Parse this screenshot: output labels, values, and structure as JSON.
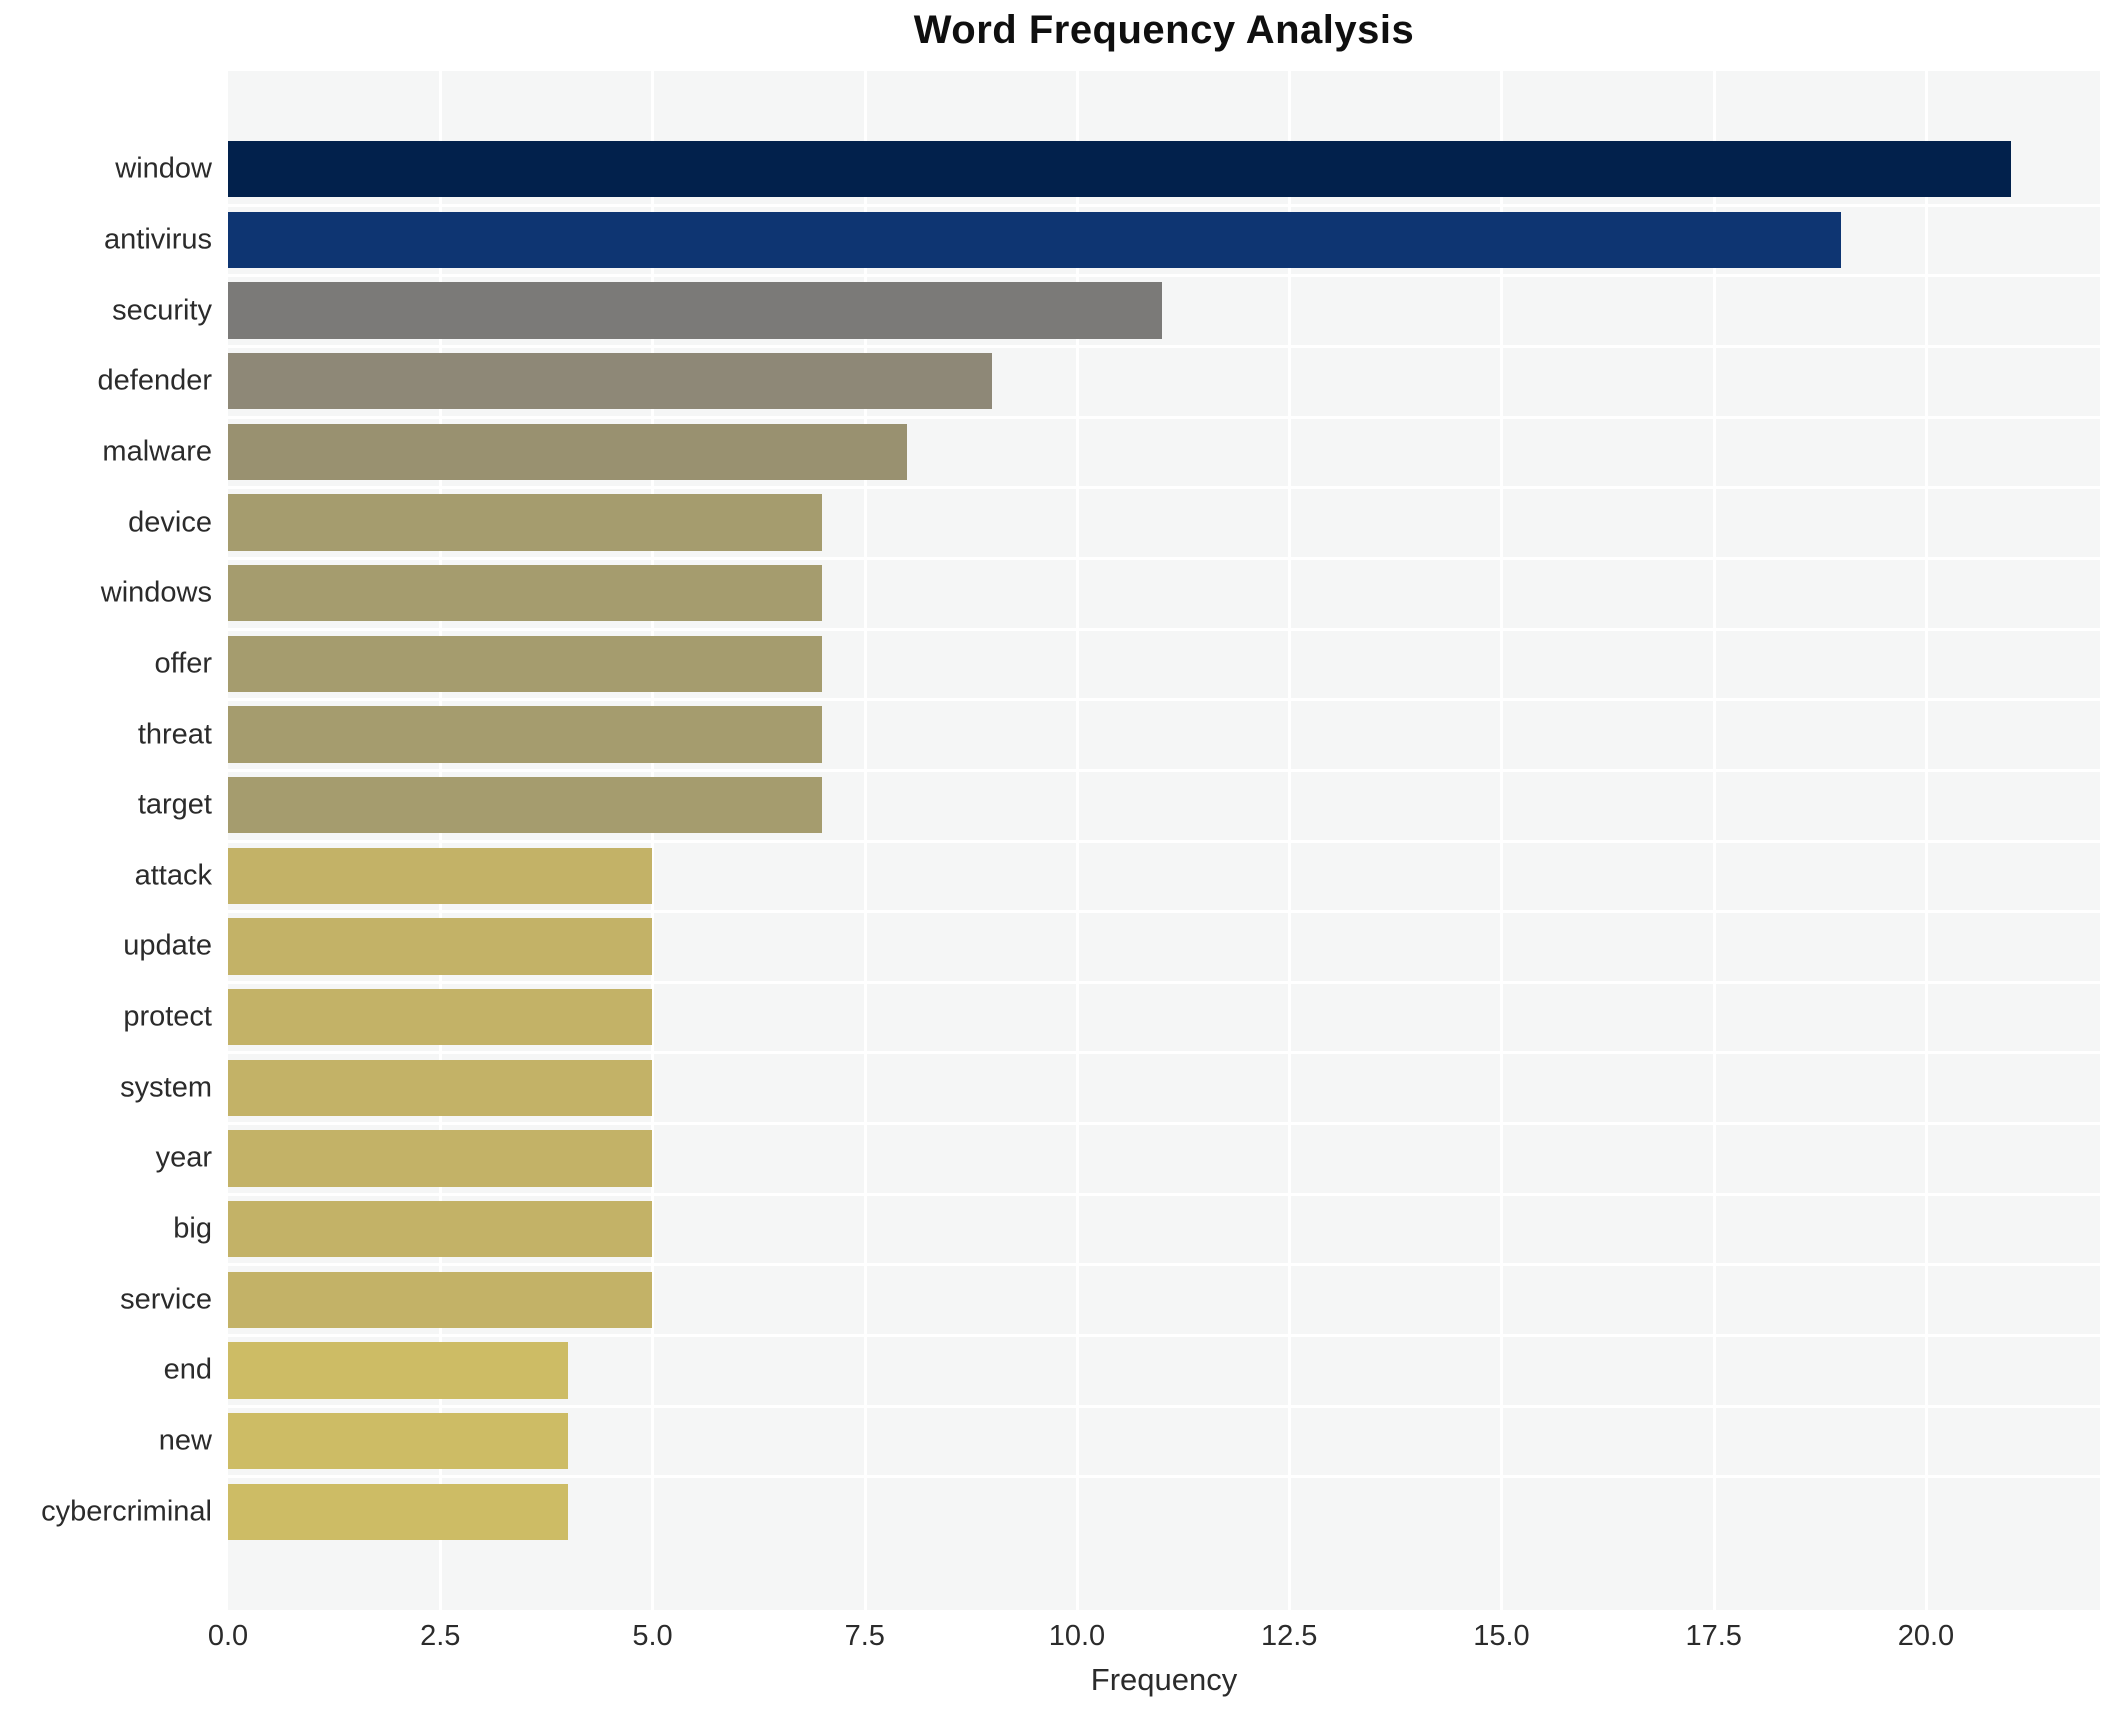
{
  "figure": {
    "title": "Word Frequency Analysis",
    "background": "#ffffff"
  },
  "chart_data": {
    "type": "bar",
    "orientation": "horizontal",
    "title": "Word Frequency Analysis",
    "xlabel": "Frequency",
    "ylabel": "",
    "categories": [
      "window",
      "antivirus",
      "security",
      "defender",
      "malware",
      "device",
      "windows",
      "offer",
      "threat",
      "target",
      "attack",
      "update",
      "protect",
      "system",
      "year",
      "big",
      "service",
      "end",
      "new",
      "cybercriminal"
    ],
    "values": [
      21,
      19,
      11,
      9,
      8,
      7,
      7,
      7,
      7,
      7,
      5,
      5,
      5,
      5,
      5,
      5,
      5,
      4,
      4,
      4
    ],
    "bar_colors": [
      "#02214c",
      "#0e3572",
      "#7b7a78",
      "#8e8877",
      "#999170",
      "#a59c6e",
      "#a59c6e",
      "#a59c6e",
      "#a59c6e",
      "#a59c6e",
      "#c3b267",
      "#c3b267",
      "#c3b267",
      "#c3b267",
      "#c3b267",
      "#c3b267",
      "#c3b267",
      "#cdbc65",
      "#cdbc65",
      "#cdbc65"
    ],
    "x_ticks": [
      "0.0",
      "2.5",
      "5.0",
      "7.5",
      "10.0",
      "12.5",
      "15.0",
      "17.5",
      "20.0"
    ],
    "xlim": [
      0,
      22.05
    ],
    "ylim_pad": 0.99,
    "bar_height_fraction": 0.8,
    "grid": true,
    "legend_position": "none",
    "plot_background": "#f5f6f6",
    "grid_color": "#ffffff",
    "text_color": "#2b2b2b",
    "title_color": "#0f0f0f"
  }
}
